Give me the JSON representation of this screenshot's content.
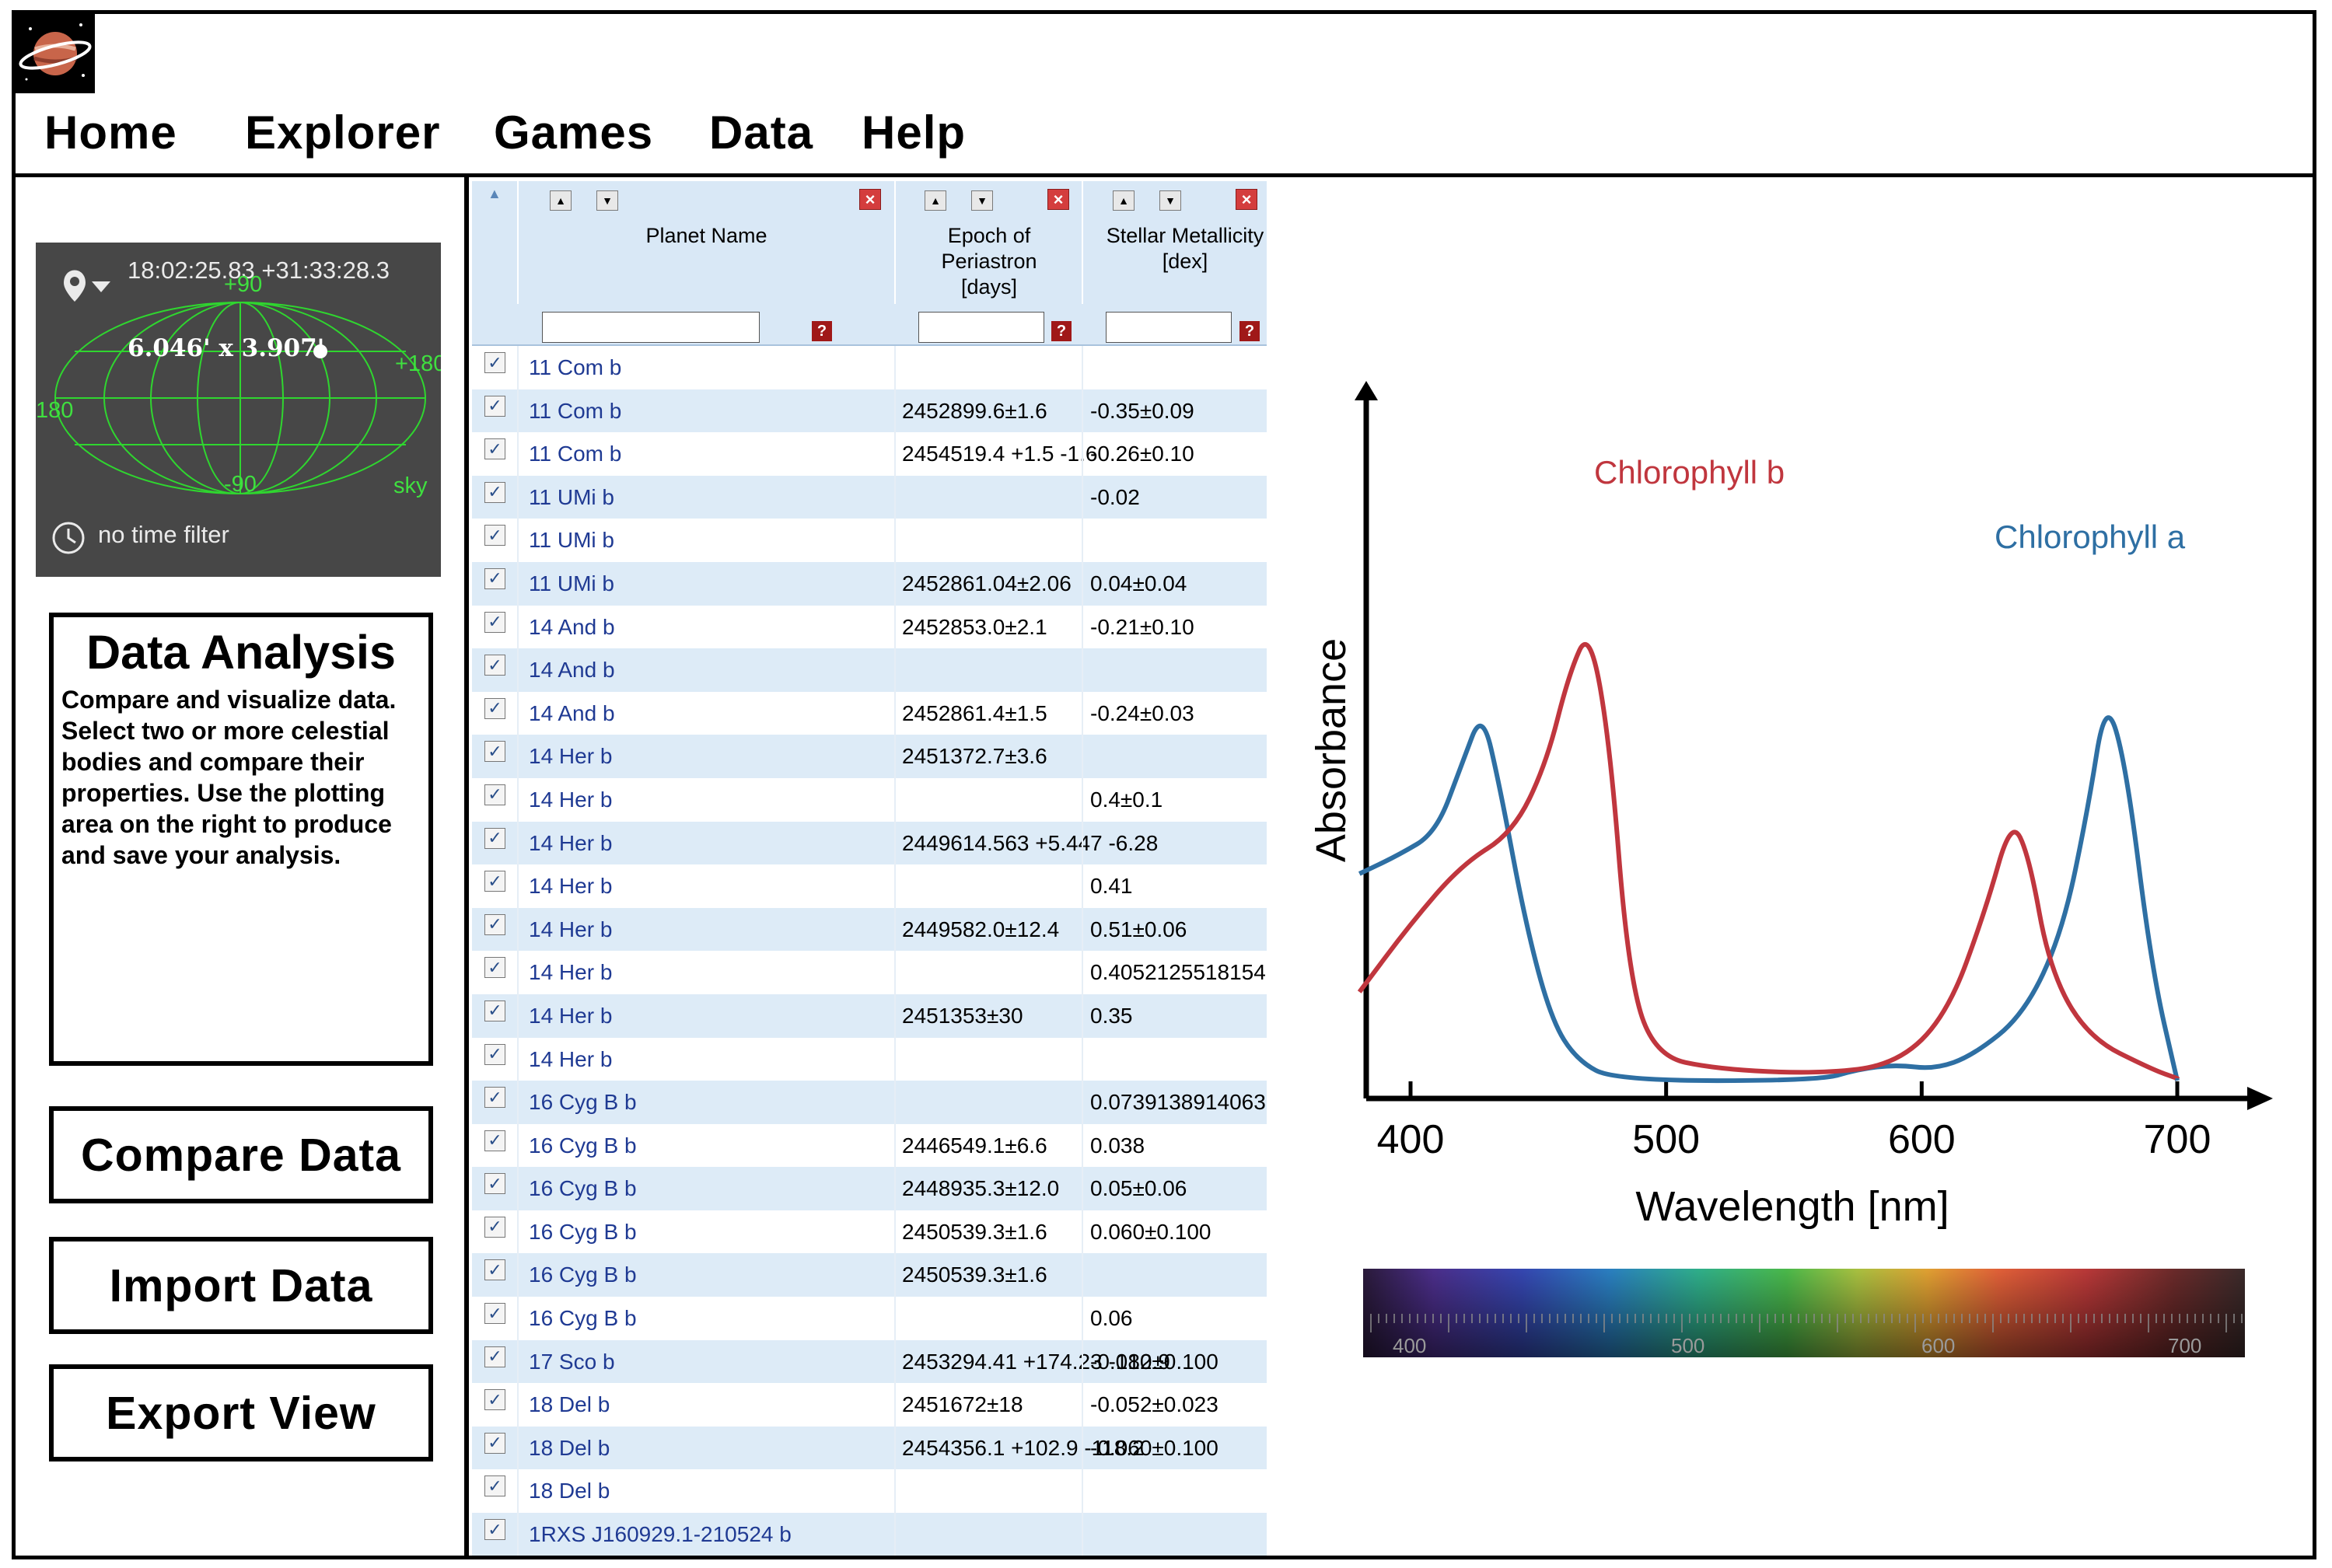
{
  "nav": {
    "home": "Home",
    "explorer": "Explorer",
    "games": "Games",
    "data": "Data",
    "help": "Help"
  },
  "sky_widget": {
    "coords": "18:02:25.83 +31:33:28.3",
    "fov": "6.046' x 3.907'",
    "label_top": "+90",
    "label_bottom": "-90",
    "label_left": "180",
    "label_right": "+180",
    "label_sky": "sky",
    "time_filter": "no time filter"
  },
  "sidebar": {
    "data_analysis_title": "Data Analysis",
    "data_analysis_desc": "Compare and visualize data. Select two or more celestial bodies and compare their properties. Use the plotting area on the right to produce and save your analysis.",
    "compare_button": "Compare Data",
    "import_button": "Import Data",
    "export_button": "Export View"
  },
  "table": {
    "columns": [
      "Planet Name",
      "Epoch of Periastron [days]",
      "Stellar Metallicity [dex]"
    ],
    "rows": [
      {
        "name": "11 Com b",
        "epoch": "",
        "metal": ""
      },
      {
        "name": "11 Com b",
        "epoch": "2452899.6±1.6",
        "metal": "-0.35±0.09"
      },
      {
        "name": "11 Com b",
        "epoch": "2454519.4 +1.5 -1.6",
        "metal": "-0.26±0.10"
      },
      {
        "name": "11 UMi b",
        "epoch": "",
        "metal": "-0.02"
      },
      {
        "name": "11 UMi b",
        "epoch": "",
        "metal": ""
      },
      {
        "name": "11 UMi b",
        "epoch": "2452861.04±2.06",
        "metal": "0.04±0.04"
      },
      {
        "name": "14 And b",
        "epoch": "2452853.0±2.1",
        "metal": "-0.21±0.10"
      },
      {
        "name": "14 And b",
        "epoch": "",
        "metal": ""
      },
      {
        "name": "14 And b",
        "epoch": "2452861.4±1.5",
        "metal": "-0.24±0.03"
      },
      {
        "name": "14 Her b",
        "epoch": "2451372.7±3.6",
        "metal": ""
      },
      {
        "name": "14 Her b",
        "epoch": "",
        "metal": "0.4±0.1"
      },
      {
        "name": "14 Her b",
        "epoch": "2449614.563 +5.447 -6.28",
        "metal": ""
      },
      {
        "name": "14 Her b",
        "epoch": "",
        "metal": "0.41"
      },
      {
        "name": "14 Her b",
        "epoch": "2449582.0±12.4",
        "metal": "0.51±0.06"
      },
      {
        "name": "14 Her b",
        "epoch": "",
        "metal": "0.4052125518154"
      },
      {
        "name": "14 Her b",
        "epoch": "2451353±30",
        "metal": "0.35"
      },
      {
        "name": "14 Her b",
        "epoch": "",
        "metal": ""
      },
      {
        "name": "16 Cyg B b",
        "epoch": "",
        "metal": "0.0739138914063"
      },
      {
        "name": "16 Cyg B b",
        "epoch": "2446549.1±6.6",
        "metal": "0.038"
      },
      {
        "name": "16 Cyg B b",
        "epoch": "2448935.3±12.0",
        "metal": "0.05±0.06"
      },
      {
        "name": "16 Cyg B b",
        "epoch": "2450539.3±1.6",
        "metal": "0.060±0.100"
      },
      {
        "name": "16 Cyg B b",
        "epoch": "2450539.3±1.6",
        "metal": ""
      },
      {
        "name": "16 Cyg B b",
        "epoch": "",
        "metal": "0.06"
      },
      {
        "name": "17 Sco b",
        "epoch": "2453294.41 +174.23 -182.9",
        "metal": "-0.010±0.100"
      },
      {
        "name": "18 Del b",
        "epoch": "2451672±18",
        "metal": "-0.052±0.023"
      },
      {
        "name": "18 Del b",
        "epoch": "2454356.1 +102.9 -118.2",
        "metal": "-0.060±0.100"
      },
      {
        "name": "18 Del b",
        "epoch": "",
        "metal": ""
      },
      {
        "name": "1RXS J160929.1-210524 b",
        "epoch": "",
        "metal": ""
      }
    ]
  },
  "chart_data": {
    "type": "line",
    "title": "",
    "xlabel": "Wavelength [nm]",
    "ylabel": "Absorbance",
    "xticks": [
      400,
      500,
      600,
      700
    ],
    "xlim": [
      380,
      720
    ],
    "ylim": [
      0,
      1
    ],
    "series": [
      {
        "name": "Chlorophyll a",
        "color": "#2e6fa3",
        "points": [
          [
            380,
            0.46
          ],
          [
            395,
            0.5
          ],
          [
            410,
            0.55
          ],
          [
            420,
            0.7
          ],
          [
            428,
            0.82
          ],
          [
            435,
            0.65
          ],
          [
            445,
            0.35
          ],
          [
            455,
            0.14
          ],
          [
            465,
            0.05
          ],
          [
            480,
            0.005
          ],
          [
            560,
            0.005
          ],
          [
            575,
            0.03
          ],
          [
            590,
            0.04
          ],
          [
            605,
            0.03
          ],
          [
            620,
            0.06
          ],
          [
            640,
            0.15
          ],
          [
            655,
            0.33
          ],
          [
            665,
            0.6
          ],
          [
            672,
            0.85
          ],
          [
            680,
            0.7
          ],
          [
            690,
            0.25
          ],
          [
            700,
            0.005
          ]
        ]
      },
      {
        "name": "Chlorophyll b",
        "color": "#c0363e",
        "points": [
          [
            380,
            0.2
          ],
          [
            400,
            0.35
          ],
          [
            420,
            0.48
          ],
          [
            440,
            0.55
          ],
          [
            453,
            0.7
          ],
          [
            462,
            0.9
          ],
          [
            470,
            1.0
          ],
          [
            478,
            0.75
          ],
          [
            485,
            0.25
          ],
          [
            495,
            0.06
          ],
          [
            520,
            0.03
          ],
          [
            560,
            0.02
          ],
          [
            590,
            0.04
          ],
          [
            610,
            0.15
          ],
          [
            625,
            0.38
          ],
          [
            635,
            0.58
          ],
          [
            642,
            0.5
          ],
          [
            650,
            0.25
          ],
          [
            665,
            0.1
          ],
          [
            690,
            0.03
          ],
          [
            700,
            0.01
          ]
        ]
      }
    ],
    "legend": "inline",
    "grid": false
  },
  "spectrum_scale": [
    "400",
    "500",
    "600",
    "700"
  ]
}
